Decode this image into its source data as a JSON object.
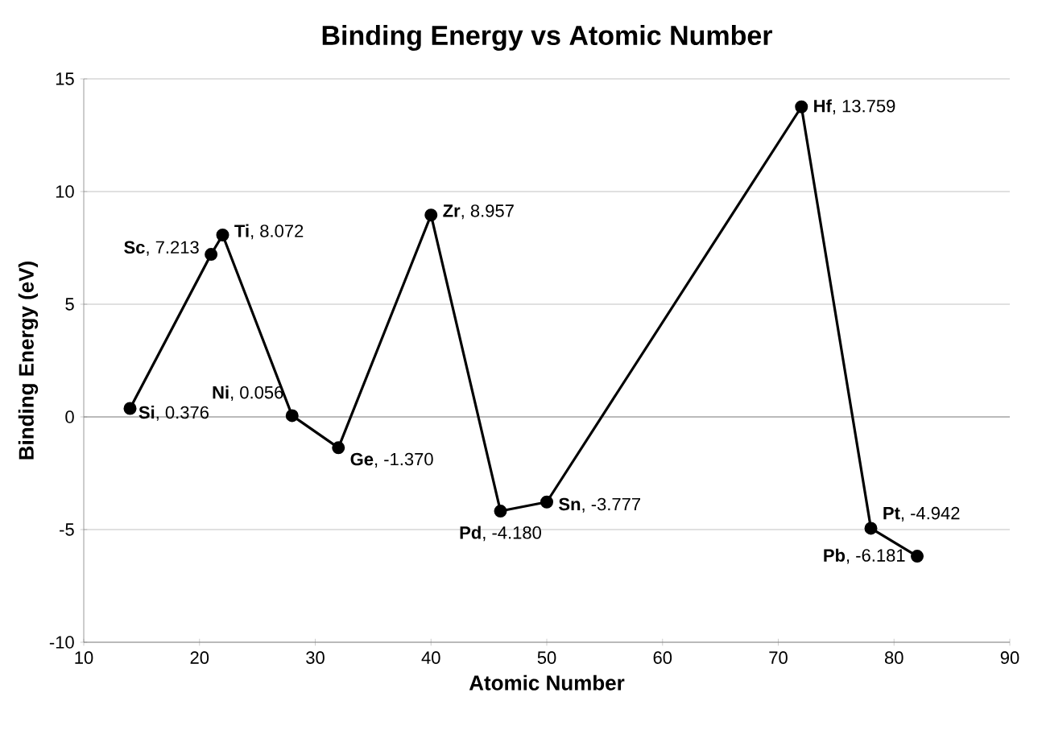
{
  "chart_data": {
    "type": "line",
    "title": "Binding Energy vs Atomic Number",
    "xlabel": "Atomic Number",
    "ylabel": "Binding Energy (eV)",
    "x": [
      14,
      21,
      22,
      28,
      32,
      40,
      46,
      50,
      72,
      78,
      82
    ],
    "series": [
      {
        "color": "#000000",
        "values": [
          0.376,
          7.213,
          8.072,
          0.056,
          -1.37,
          8.957,
          -4.18,
          -3.777,
          13.759,
          -4.942,
          -6.181
        ]
      }
    ],
    "xlim": [
      10,
      90
    ],
    "xticks": [
      10,
      20,
      30,
      40,
      50,
      60,
      70,
      80,
      90
    ],
    "ylim": [
      -10,
      15
    ],
    "yticks": [
      -10,
      -5,
      0,
      5,
      10,
      15
    ],
    "grid": "y",
    "marker": "circle",
    "line_style": "solid",
    "annotations": [
      {
        "text": "**Si**, 0.376",
        "x": 14,
        "y": 0.376
      },
      {
        "text": "**Sc**, 7.213",
        "x": 21,
        "y": 7.213
      },
      {
        "text": "**Ti**, 8.072",
        "x": 22,
        "y": 8.072
      },
      {
        "text": "**Ni**, 0.056",
        "x": 28,
        "y": 0.056
      },
      {
        "text": "**Ge**, -1.370",
        "x": 32,
        "y": -1.37
      },
      {
        "text": "**Zr**, 8.957",
        "x": 40,
        "y": 8.957
      },
      {
        "text": "**Pd**, -4.180",
        "x": 46,
        "y": -4.18
      },
      {
        "text": "**Sn**, -3.777",
        "x": 50,
        "y": -3.777
      },
      {
        "text": "**Hf**, 13.759",
        "x": 72,
        "y": 13.759
      },
      {
        "text": "**Pt**, -4.942",
        "x": 78,
        "y": -4.942
      },
      {
        "text": "**Pb**, -6.181",
        "x": 82,
        "y": -6.181
      }
    ]
  }
}
